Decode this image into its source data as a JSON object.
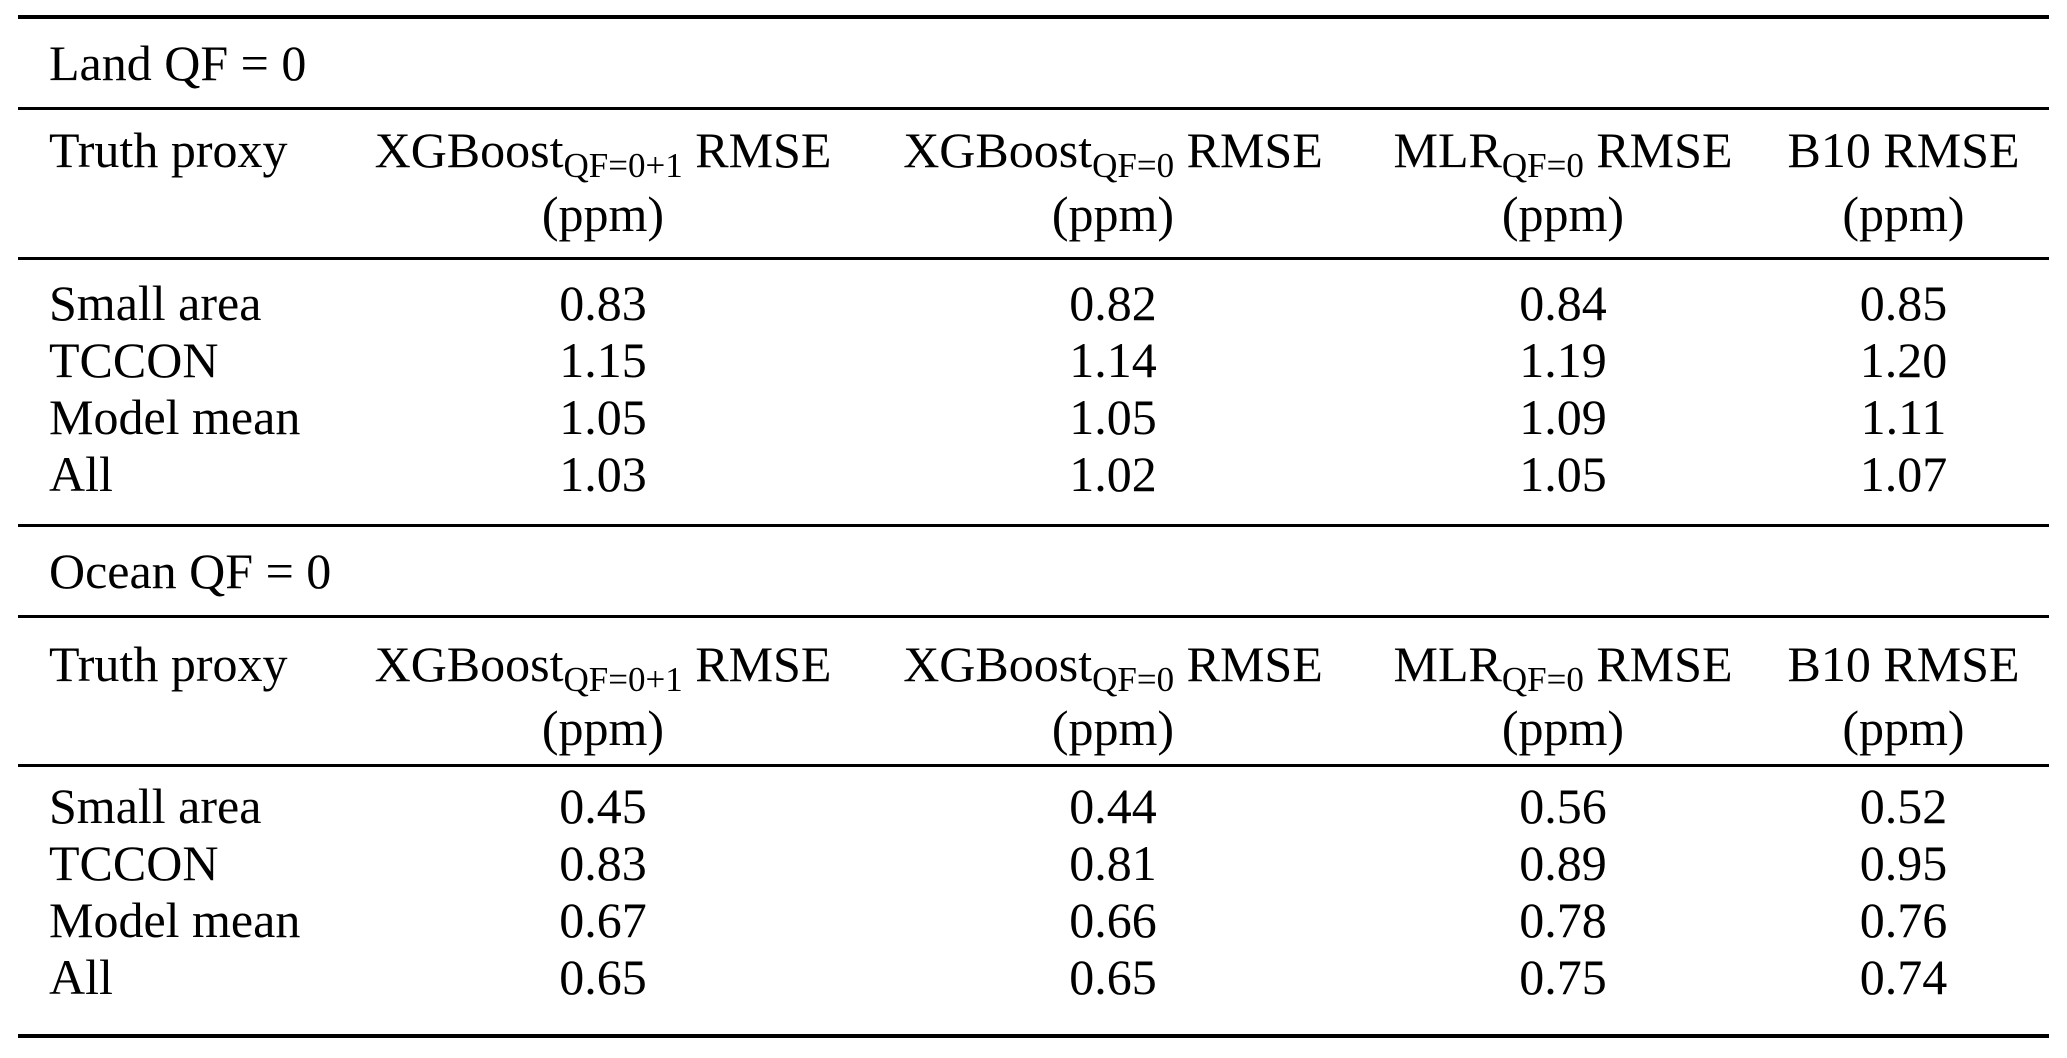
{
  "colors": {
    "background": "#ffffff",
    "text": "#000000",
    "rule": "#000000"
  },
  "table": {
    "sections": [
      {
        "title": "Land QF = 0",
        "header": {
          "col1": "Truth proxy",
          "cols": [
            {
              "main": "XGBoost",
              "sub": "QF=0+1",
              "rest": " RMSE",
              "unit": "(ppm)"
            },
            {
              "main": "XGBoost",
              "sub": "QF=0",
              "rest": " RMSE",
              "unit": "(ppm)"
            },
            {
              "main": "MLR",
              "sub": "QF=0",
              "rest": " RMSE",
              "unit": "(ppm)"
            },
            {
              "main": "B10",
              "sub": "",
              "rest": " RMSE",
              "unit": "(ppm)"
            }
          ]
        },
        "rows": [
          {
            "label": "Small area",
            "values": [
              "0.83",
              "0.82",
              "0.84",
              "0.85"
            ]
          },
          {
            "label": "TCCON",
            "values": [
              "1.15",
              "1.14",
              "1.19",
              "1.20"
            ]
          },
          {
            "label": "Model mean",
            "values": [
              "1.05",
              "1.05",
              "1.09",
              "1.11"
            ]
          },
          {
            "label": "All",
            "values": [
              "1.03",
              "1.02",
              "1.05",
              "1.07"
            ]
          }
        ]
      },
      {
        "title": "Ocean QF = 0",
        "header": {
          "col1": "Truth proxy",
          "cols": [
            {
              "main": "XGBoost",
              "sub": "QF=0+1",
              "rest": " RMSE",
              "unit": "(ppm)"
            },
            {
              "main": "XGBoost",
              "sub": "QF=0",
              "rest": " RMSE",
              "unit": "(ppm)"
            },
            {
              "main": "MLR",
              "sub": "QF=0",
              "rest": " RMSE",
              "unit": "(ppm)"
            },
            {
              "main": "B10",
              "sub": "",
              "rest": " RMSE",
              "unit": "(ppm)"
            }
          ]
        },
        "rows": [
          {
            "label": "Small area",
            "values": [
              "0.45",
              "0.44",
              "0.56",
              "0.52"
            ]
          },
          {
            "label": "TCCON",
            "values": [
              "0.83",
              "0.81",
              "0.89",
              "0.95"
            ]
          },
          {
            "label": "Model mean",
            "values": [
              "0.67",
              "0.66",
              "0.78",
              "0.76"
            ]
          },
          {
            "label": "All",
            "values": [
              "0.65",
              "0.65",
              "0.75",
              "0.74"
            ]
          }
        ]
      }
    ]
  }
}
